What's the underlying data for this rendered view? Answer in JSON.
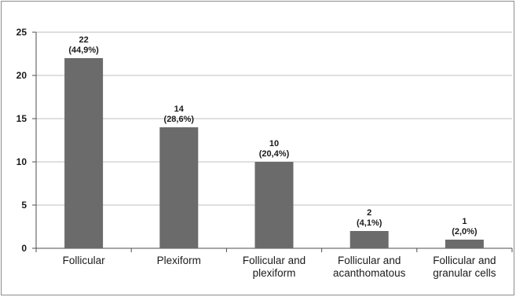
{
  "chart_data": {
    "type": "bar",
    "categories": [
      [
        "Follicular"
      ],
      [
        "Plexiform"
      ],
      [
        "Follicular and",
        "plexiform"
      ],
      [
        "Follicular and",
        "acanthomatous"
      ],
      [
        "Follicular and",
        "granular cells"
      ]
    ],
    "values": [
      22,
      14,
      10,
      2,
      1
    ],
    "value_labels": [
      "22",
      "14",
      "10",
      "2",
      "1"
    ],
    "percent_labels": [
      "(44,9%)",
      "(28,6%)",
      "(20,4%)",
      "(4,1%)",
      "(2,0%)"
    ],
    "ylim": [
      0,
      25
    ],
    "yticks": [
      "0",
      "5",
      "10",
      "15",
      "20",
      "25"
    ],
    "grid": true,
    "legend": "none",
    "bar_color": "#6b6b6b",
    "grid_color": "#bfbfbf",
    "title": "",
    "xlabel": "",
    "ylabel": ""
  }
}
